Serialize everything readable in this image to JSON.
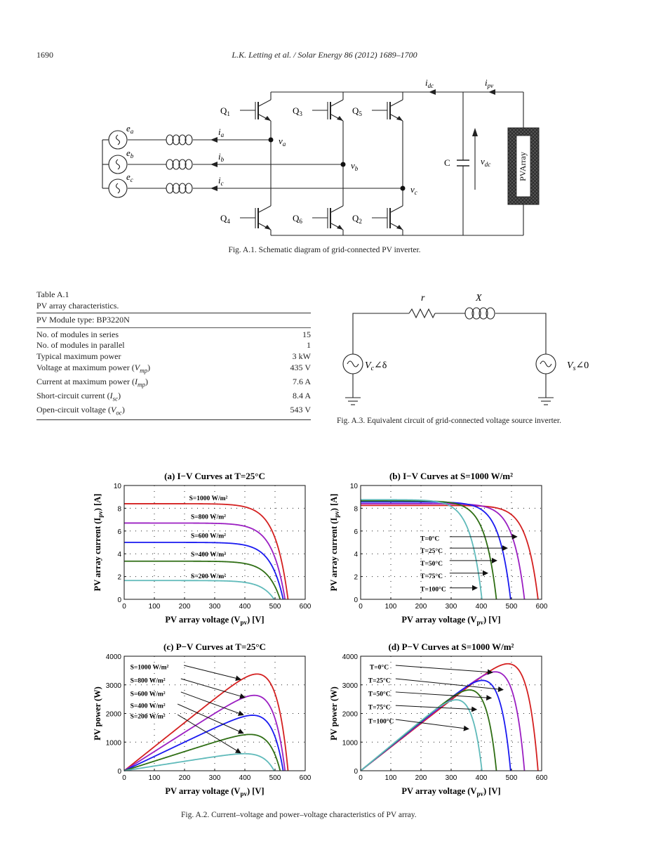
{
  "header": {
    "page_number": "1690",
    "running_title": "L.K. Letting et al. / Solar Energy 86 (2012) 1689–1700"
  },
  "fig_a1": {
    "caption": "Fig. A.1. Schematic diagram of grid-connected PV inverter.",
    "sources": [
      {
        "main": "e",
        "sub": "a"
      },
      {
        "main": "e",
        "sub": "b"
      },
      {
        "main": "e",
        "sub": "c"
      }
    ],
    "currents": [
      {
        "main": "i",
        "sub": "a"
      },
      {
        "main": "i",
        "sub": "b"
      },
      {
        "main": "i",
        "sub": "c"
      }
    ],
    "nodes": [
      {
        "main": "v",
        "sub": "a"
      },
      {
        "main": "v",
        "sub": "b"
      },
      {
        "main": "v",
        "sub": "c"
      }
    ],
    "switches_top": [
      {
        "main": "Q",
        "sub": "1"
      },
      {
        "main": "Q",
        "sub": "3"
      },
      {
        "main": "Q",
        "sub": "5"
      }
    ],
    "switches_bottom": [
      {
        "main": "Q",
        "sub": "4"
      },
      {
        "main": "Q",
        "sub": "6"
      },
      {
        "main": "Q",
        "sub": "2"
      }
    ],
    "capacitor": "C",
    "vdc": {
      "main": "v",
      "sub": "dc"
    },
    "idc": {
      "main": "i",
      "sub": "dc"
    },
    "ipv": {
      "main": "i",
      "sub": "pv"
    },
    "pv_array": "PVArray"
  },
  "table_a1": {
    "label": "Table A.1",
    "title": "PV array characteristics.",
    "module_type": "PV Module type: BP3220N",
    "rows": [
      {
        "name": "No. of modules in series",
        "sym": "",
        "tail": "",
        "value": "15"
      },
      {
        "name": "No. of modules in parallel",
        "sym": "",
        "tail": "",
        "value": "1"
      },
      {
        "name": "Typical maximum power",
        "sym": "",
        "tail": "",
        "value": "3 kW"
      },
      {
        "name": "Voltage at maximum power (",
        "sym": "V",
        "sub": "mp",
        "tail": ")",
        "value": "435 V"
      },
      {
        "name": "Current at maximum power (",
        "sym": "I",
        "sub": "mp",
        "tail": ")",
        "value": "7.6 A"
      },
      {
        "name": "Short-circuit current (",
        "sym": "I",
        "sub": "sc",
        "tail": ")",
        "value": "8.4 A"
      },
      {
        "name": "Open-circuit voltage (",
        "sym": "V",
        "sub": "oc",
        "tail": ")",
        "value": "543 V"
      }
    ]
  },
  "fig_a3": {
    "caption": "Fig. A.3. Equivalent circuit of grid-connected voltage source inverter.",
    "resistor": "r",
    "reactance": "X",
    "left_source": {
      "main": "V",
      "sub": "c",
      "tail": "∠δ"
    },
    "right_source": {
      "main": "V",
      "sub": "s",
      "tail": "∠0"
    }
  },
  "fig_a2": {
    "caption": "Fig. A.2. Current–voltage and power–voltage characteristics of PV array."
  },
  "chart_data": [
    {
      "type": "line",
      "title": "(a) I−V Curves at T=25°C",
      "xlabel": {
        "text": "PV array voltage (V",
        "sub": "pv",
        "tail": ") [V]"
      },
      "ylabel": {
        "text": "PV array current (I",
        "sub": "pv",
        "tail": ") [A]"
      },
      "xlim": [
        0,
        600
      ],
      "ylim": [
        0,
        10
      ],
      "xticks": [
        0,
        100,
        200,
        300,
        400,
        500,
        600
      ],
      "yticks": [
        0,
        2,
        4,
        6,
        8,
        10
      ],
      "grid": true,
      "series": [
        {
          "name": "S=1000 W/m²",
          "color": "#d42020",
          "isc": 8.4,
          "voc": 543
        },
        {
          "name": "S=800 W/m²",
          "color": "#9b1fc2",
          "isc": 6.7,
          "voc": 533
        },
        {
          "name": "S=600 W/m²",
          "color": "#1a1af0",
          "isc": 5.0,
          "voc": 527
        },
        {
          "name": "S=400 W/m²",
          "color": "#2f6e14",
          "isc": 3.35,
          "voc": 517
        },
        {
          "name": "S=200 W/m²",
          "color": "#5fbaba",
          "isc": 1.65,
          "voc": 497
        }
      ]
    },
    {
      "type": "line",
      "title": "(b) I−V Curves at S=1000 W/m²",
      "xlabel": {
        "text": "PV array voltage (V",
        "sub": "pv",
        "tail": ") [V]"
      },
      "ylabel": {
        "text": "PV array current (I",
        "sub": "pv",
        "tail": ") [A]"
      },
      "xlim": [
        0,
        600
      ],
      "ylim": [
        0,
        10
      ],
      "xticks": [
        0,
        100,
        200,
        300,
        400,
        500,
        600
      ],
      "yticks": [
        0,
        2,
        4,
        6,
        8,
        10
      ],
      "grid": true,
      "series": [
        {
          "name": "T=0°C",
          "color": "#d42020",
          "isc": 8.25,
          "voc": 588
        },
        {
          "name": "T=25°C",
          "color": "#9b1fc2",
          "isc": 8.4,
          "voc": 543
        },
        {
          "name": "T=50°C",
          "color": "#1a1af0",
          "isc": 8.55,
          "voc": 497
        },
        {
          "name": "T=75°C",
          "color": "#2f6e14",
          "isc": 8.65,
          "voc": 450
        },
        {
          "name": "T=100°C",
          "color": "#5fbaba",
          "isc": 8.75,
          "voc": 402
        }
      ]
    },
    {
      "type": "line",
      "title": "(c) P−V Curves at T=25°C",
      "xlabel": {
        "text": "PV array voltage (V",
        "sub": "pv",
        "tail": ") [V]"
      },
      "ylabel": {
        "text": "PV power (W)",
        "sub": "",
        "tail": ""
      },
      "xlim": [
        0,
        600
      ],
      "ylim": [
        0,
        4000
      ],
      "xticks": [
        0,
        100,
        200,
        300,
        400,
        500,
        600
      ],
      "yticks": [
        0,
        1000,
        2000,
        3000,
        4000
      ],
      "grid": true,
      "series": [
        {
          "name": "S=1000 W/m²",
          "color": "#d42020",
          "isc": 8.4,
          "voc": 543,
          "peak": [
            415,
            3250
          ]
        },
        {
          "name": "S=800 W/m²",
          "color": "#9b1fc2",
          "isc": 6.7,
          "voc": 533,
          "peak": [
            420,
            2630
          ]
        },
        {
          "name": "S=600 W/m²",
          "color": "#1a1af0",
          "isc": 5.0,
          "voc": 527,
          "peak": [
            420,
            1990
          ]
        },
        {
          "name": "S=400 W/m²",
          "color": "#2f6e14",
          "isc": 3.35,
          "voc": 517,
          "peak": [
            415,
            1330
          ]
        },
        {
          "name": "S=200 W/m²",
          "color": "#5fbaba",
          "isc": 1.65,
          "voc": 497,
          "peak": [
            400,
            650
          ]
        }
      ]
    },
    {
      "type": "line",
      "title": "(d) P−V Curves at S=1000 W/m²",
      "xlabel": {
        "text": "PV array voltage (V",
        "sub": "pv",
        "tail": ") [V]"
      },
      "ylabel": {
        "text": "PV power (W)",
        "sub": "",
        "tail": ""
      },
      "xlim": [
        0,
        600
      ],
      "ylim": [
        0,
        4000
      ],
      "xticks": [
        0,
        100,
        200,
        300,
        400,
        500,
        600
      ],
      "yticks": [
        0,
        1000,
        2000,
        3000,
        4000
      ],
      "grid": true,
      "series": [
        {
          "name": "T=0°C",
          "color": "#d42020",
          "isc": 8.25,
          "voc": 588,
          "peak": [
            465,
            3600
          ]
        },
        {
          "name": "T=25°C",
          "color": "#9b1fc2",
          "isc": 8.4,
          "voc": 543,
          "peak": [
            415,
            3250
          ]
        },
        {
          "name": "T=50°C",
          "color": "#1a1af0",
          "isc": 8.55,
          "voc": 497,
          "peak": [
            370,
            2880
          ]
        },
        {
          "name": "T=75°C",
          "color": "#2f6e14",
          "isc": 8.65,
          "voc": 450,
          "peak": [
            325,
            2500
          ]
        },
        {
          "name": "T=100°C",
          "color": "#5fbaba",
          "isc": 8.75,
          "voc": 402,
          "peak": [
            280,
            2150
          ]
        }
      ]
    }
  ]
}
